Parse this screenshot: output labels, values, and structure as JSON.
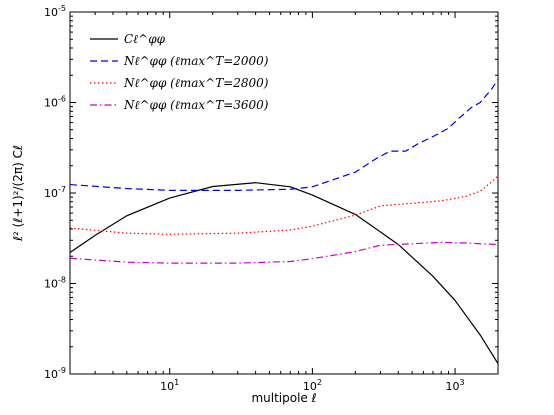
{
  "chart_data": {
    "type": "line",
    "x_scale": "log",
    "y_scale": "log",
    "xlim": [
      2,
      2000
    ],
    "ylim": [
      1e-09,
      1e-05
    ],
    "xlabel": "multipole ℓ",
    "ylabel": "ℓ² (ℓ+1)²/(2π) Cℓ",
    "x_ticks": [
      {
        "value": 10,
        "label": "10",
        "exp": "1"
      },
      {
        "value": 100,
        "label": "10",
        "exp": "2"
      },
      {
        "value": 1000,
        "label": "10",
        "exp": "3"
      }
    ],
    "y_ticks": [
      {
        "value": 1e-09,
        "label": "10",
        "exp": "-9"
      },
      {
        "value": 1e-08,
        "label": "10",
        "exp": "-8"
      },
      {
        "value": 1e-07,
        "label": "10",
        "exp": "-7"
      },
      {
        "value": 1e-06,
        "label": "10",
        "exp": "-6"
      },
      {
        "value": 1e-05,
        "label": "10",
        "exp": "-5"
      }
    ],
    "grid": false,
    "legend_position": "top-left",
    "series": [
      {
        "name": "Cℓ^φφ",
        "color": "#000000",
        "style": "solid",
        "points": [
          [
            2,
            2.2e-08
          ],
          [
            3,
            3.4e-08
          ],
          [
            5,
            5.6e-08
          ],
          [
            10,
            8.8e-08
          ],
          [
            20,
            1.18e-07
          ],
          [
            40,
            1.3e-07
          ],
          [
            70,
            1.17e-07
          ],
          [
            100,
            9.5e-08
          ],
          [
            200,
            5.8e-08
          ],
          [
            400,
            2.7e-08
          ],
          [
            700,
            1.2e-08
          ],
          [
            1000,
            6.5e-09
          ],
          [
            1500,
            2.7e-09
          ],
          [
            2000,
            1.3e-09
          ]
        ]
      },
      {
        "name": "Nℓ^φφ (ℓmax^T=2000)",
        "color": "#0000ee",
        "style": "dashed",
        "points": [
          [
            2,
            1.24e-07
          ],
          [
            5,
            1.12e-07
          ],
          [
            10,
            1.07e-07
          ],
          [
            30,
            1.07e-07
          ],
          [
            70,
            1.1e-07
          ],
          [
            100,
            1.17e-07
          ],
          [
            200,
            1.7e-07
          ],
          [
            280,
            2.4e-07
          ],
          [
            350,
            2.9e-07
          ],
          [
            450,
            2.9e-07
          ],
          [
            550,
            3.5e-07
          ],
          [
            700,
            4.2e-07
          ],
          [
            900,
            5.2e-07
          ],
          [
            1100,
            7e-07
          ],
          [
            1300,
            8.8e-07
          ],
          [
            1500,
            1e-06
          ],
          [
            1800,
            1.4e-06
          ],
          [
            2000,
            1.8e-06
          ]
        ]
      },
      {
        "name": "Nℓ^φφ (ℓmax^T=2800)",
        "color": "#ff0000",
        "style": "dotted",
        "points": [
          [
            2,
            4.1e-08
          ],
          [
            5,
            3.6e-08
          ],
          [
            10,
            3.5e-08
          ],
          [
            30,
            3.6e-08
          ],
          [
            70,
            3.9e-08
          ],
          [
            100,
            4.3e-08
          ],
          [
            200,
            5.7e-08
          ],
          [
            300,
            7.2e-08
          ],
          [
            500,
            7.7e-08
          ],
          [
            800,
            8.2e-08
          ],
          [
            1200,
            9.2e-08
          ],
          [
            1500,
            1.05e-07
          ],
          [
            1800,
            1.32e-07
          ],
          [
            2000,
            1.55e-07
          ]
        ]
      },
      {
        "name": "Nℓ^φφ (ℓmax^T=3600)",
        "color": "#cc00cc",
        "style": "dashdot",
        "points": [
          [
            2,
            1.9e-08
          ],
          [
            5,
            1.72e-08
          ],
          [
            10,
            1.68e-08
          ],
          [
            30,
            1.68e-08
          ],
          [
            70,
            1.75e-08
          ],
          [
            100,
            1.88e-08
          ],
          [
            200,
            2.25e-08
          ],
          [
            300,
            2.65e-08
          ],
          [
            500,
            2.75e-08
          ],
          [
            800,
            2.85e-08
          ],
          [
            1200,
            2.8e-08
          ],
          [
            1500,
            2.75e-08
          ],
          [
            2000,
            2.7e-08
          ]
        ]
      }
    ]
  }
}
